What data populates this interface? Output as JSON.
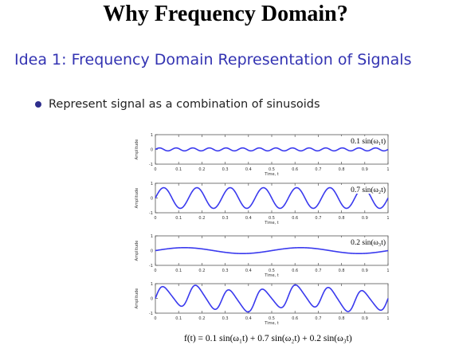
{
  "slide": {
    "title": "Why Frequency Domain?",
    "subtitle": "Idea 1: Frequency Domain Representation of Signals",
    "bullet": "Represent signal as a combination of sinusoids",
    "formula": "f(t) = 0.1 sin(ω₁t) + 0.7 sin(ω₂t) + 0.2 sin(ω₃t)"
  },
  "chart_data": [
    {
      "type": "line",
      "label": "0.1 sin(ω₁t)",
      "xlabel": "Time, t",
      "ylabel": "Amplitude",
      "xlim": [
        0,
        1
      ],
      "ylim": [
        -1,
        1
      ],
      "xticks": [
        "0",
        "0.1",
        "0.2",
        "0.3",
        "0.4",
        "0.5",
        "0.6",
        "0.7",
        "0.8",
        "0.9",
        "1"
      ],
      "yticks": [
        "-1",
        "0",
        "1"
      ],
      "line_color": "#3a3aee",
      "series": [
        {
          "amplitude": 0.1,
          "frequency_cycles": 14
        }
      ]
    },
    {
      "type": "line",
      "label": "0.7 sin(ω₂t)",
      "xlabel": "Time, t",
      "ylabel": "Amplitude",
      "xlim": [
        0,
        1
      ],
      "ylim": [
        -1,
        1
      ],
      "xticks": [
        "0",
        "0.1",
        "0.2",
        "0.3",
        "0.4",
        "0.5",
        "0.6",
        "0.7",
        "0.8",
        "0.9",
        "1"
      ],
      "yticks": [
        "-1",
        "0",
        "1"
      ],
      "line_color": "#3a3aee",
      "series": [
        {
          "amplitude": 0.7,
          "frequency_cycles": 7
        }
      ]
    },
    {
      "type": "line",
      "label": "0.2 sin(ω₃t)",
      "xlabel": "Time, t",
      "ylabel": "Amplitude",
      "xlim": [
        0,
        1
      ],
      "ylim": [
        -1,
        1
      ],
      "xticks": [
        "0",
        "0.1",
        "0.2",
        "0.3",
        "0.4",
        "0.5",
        "0.6",
        "0.7",
        "0.8",
        "0.9",
        "1"
      ],
      "yticks": [
        "-1",
        "0",
        "1"
      ],
      "line_color": "#3a3aee",
      "series": [
        {
          "amplitude": 0.2,
          "frequency_cycles": 2
        }
      ]
    },
    {
      "type": "line",
      "label": "",
      "xlabel": "Time, t",
      "ylabel": "Amplitude",
      "xlim": [
        0,
        1
      ],
      "ylim": [
        -1,
        1
      ],
      "xticks": [
        "0",
        "0.1",
        "0.2",
        "0.3",
        "0.4",
        "0.5",
        "0.6",
        "0.7",
        "0.8",
        "0.9",
        "1"
      ],
      "yticks": [
        "-1",
        "0",
        "1"
      ],
      "line_color": "#3a3aee",
      "series": [
        {
          "amplitude": 0.1,
          "frequency_cycles": 14
        },
        {
          "amplitude": 0.7,
          "frequency_cycles": 7
        },
        {
          "amplitude": 0.2,
          "frequency_cycles": 2
        }
      ]
    }
  ]
}
